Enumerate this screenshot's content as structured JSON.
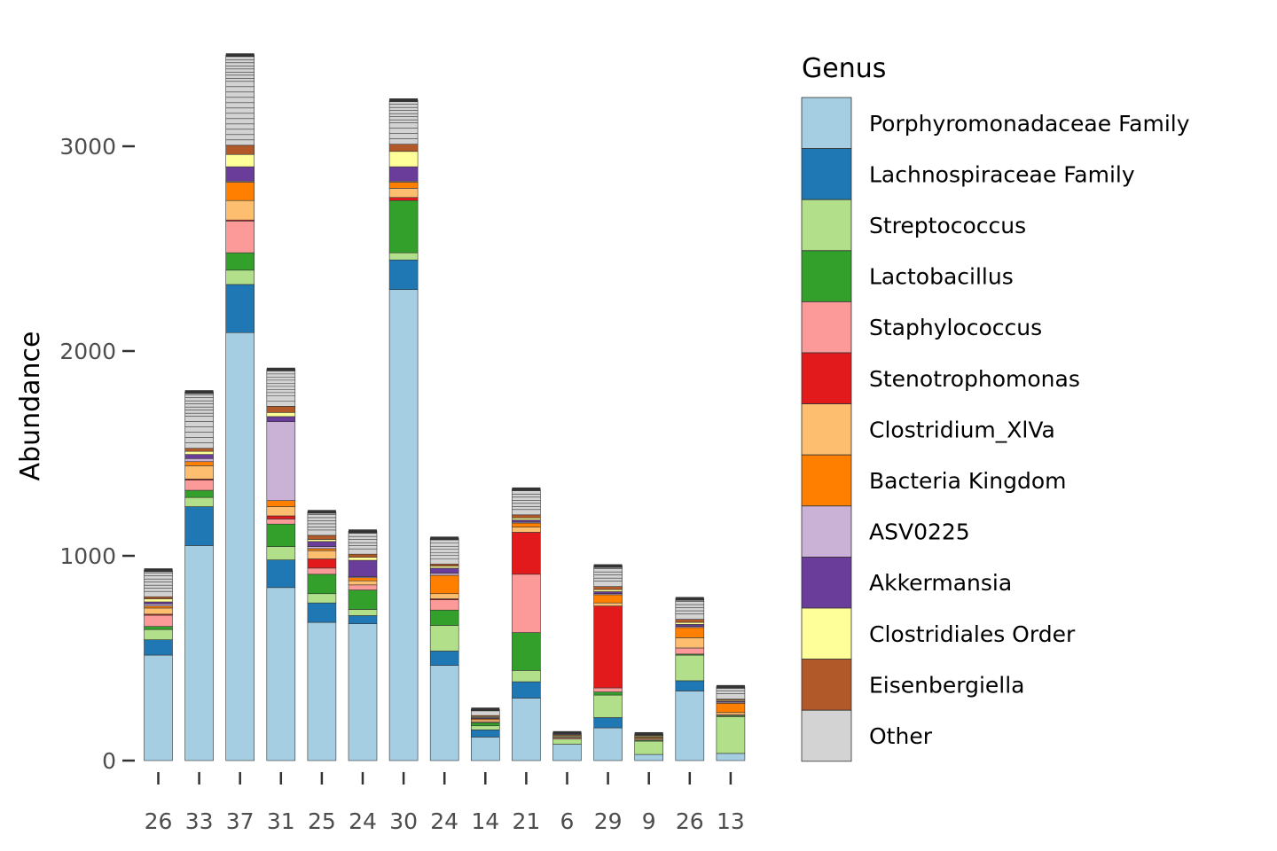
{
  "chart_data": {
    "type": "bar",
    "stacked": true,
    "ylabel": "Abundance",
    "xlabel": "",
    "ylim": [
      0,
      3450
    ],
    "yticks": [
      0,
      1000,
      2000,
      3000
    ],
    "grid": false,
    "legend_position": "right",
    "legend_title": "Genus",
    "categories": [
      "26",
      "33",
      "37",
      "31",
      "25",
      "24",
      "30",
      "24",
      "14",
      "21",
      "6",
      "29",
      "9",
      "26",
      "13"
    ],
    "series": [
      {
        "name": "Porphyromonadaceae Family",
        "color": "#a6cee3",
        "values": [
          515,
          1050,
          2090,
          845,
          675,
          668,
          2300,
          465,
          115,
          305,
          80,
          160,
          30,
          340,
          35
        ]
      },
      {
        "name": "Lachnospiraceae Family",
        "color": "#1f78b4",
        "values": [
          75,
          190,
          235,
          135,
          95,
          40,
          145,
          70,
          35,
          80,
          0,
          50,
          0,
          50,
          0
        ]
      },
      {
        "name": "Streptococcus",
        "color": "#b2df8a",
        "values": [
          50,
          45,
          70,
          65,
          45,
          30,
          35,
          125,
          20,
          55,
          25,
          110,
          65,
          125,
          180
        ]
      },
      {
        "name": "Lactobacillus",
        "color": "#33a02c",
        "values": [
          15,
          35,
          85,
          110,
          95,
          95,
          255,
          75,
          15,
          185,
          0,
          15,
          5,
          5,
          5
        ]
      },
      {
        "name": "Staphylococcus",
        "color": "#fb9a99",
        "values": [
          55,
          50,
          155,
          25,
          30,
          25,
          0,
          50,
          5,
          285,
          5,
          20,
          5,
          30,
          5
        ]
      },
      {
        "name": "Stenotrophomonas",
        "color": "#e31a1c",
        "values": [
          5,
          5,
          5,
          15,
          45,
          0,
          15,
          5,
          0,
          205,
          0,
          400,
          0,
          0,
          0
        ]
      },
      {
        "name": "Clostridium_XlVa",
        "color": "#fdbf6f",
        "values": [
          30,
          65,
          95,
          45,
          40,
          20,
          45,
          25,
          10,
          25,
          5,
          15,
          5,
          50,
          10
        ]
      },
      {
        "name": "Bacteria Kingdom",
        "color": "#ff7f00",
        "values": [
          10,
          20,
          90,
          30,
          10,
          15,
          30,
          90,
          5,
          20,
          0,
          40,
          5,
          50,
          45
        ]
      },
      {
        "name": "ASV0225",
        "color": "#cab2d6",
        "values": [
          10,
          15,
          5,
          385,
          10,
          5,
          5,
          10,
          0,
          5,
          0,
          5,
          0,
          5,
          5
        ]
      },
      {
        "name": "Akkermansia",
        "color": "#6a3d9a",
        "values": [
          10,
          20,
          70,
          25,
          25,
          80,
          70,
          25,
          5,
          10,
          0,
          10,
          0,
          10,
          5
        ]
      },
      {
        "name": "Clostridiales Order",
        "color": "#ffff99",
        "values": [
          15,
          15,
          60,
          20,
          10,
          15,
          75,
          10,
          5,
          10,
          5,
          10,
          5,
          10,
          5
        ]
      },
      {
        "name": "Eisenbergiella",
        "color": "#b15928",
        "values": [
          10,
          15,
          45,
          30,
          20,
          15,
          35,
          10,
          5,
          15,
          5,
          15,
          5,
          15,
          5
        ]
      },
      {
        "name": "Other",
        "color": "#d3d3d3",
        "values": [
          130,
          275,
          440,
          180,
          115,
          112,
          215,
          125,
          30,
          125,
          10,
          100,
          5,
          100,
          60
        ]
      }
    ]
  }
}
